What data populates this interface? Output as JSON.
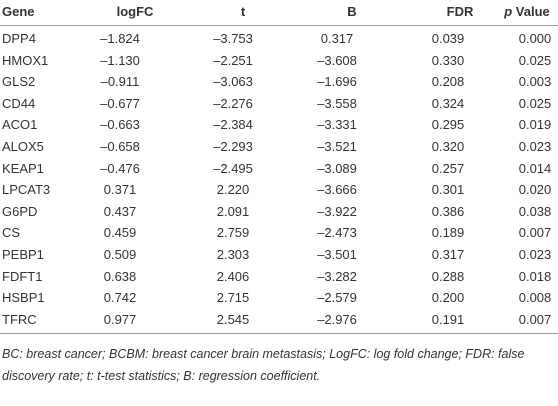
{
  "table": {
    "header": [
      "Gene",
      "logFC",
      "t",
      "B",
      "FDR",
      [
        "p",
        "Value"
      ]
    ],
    "rows": [
      [
        "DPP4",
        "–1.824",
        "–3.753",
        "0.317",
        "0.039",
        "0.000"
      ],
      [
        "HMOX1",
        "–1.130",
        "–2.251",
        "–3.608",
        "0.330",
        "0.025"
      ],
      [
        "GLS2",
        "–0.911",
        "–3.063",
        "–1.696",
        "0.208",
        "0.003"
      ],
      [
        "CD44",
        "–0.677",
        "–2.276",
        "–3.558",
        "0.324",
        "0.025"
      ],
      [
        "ACO1",
        "–0.663",
        "–2.384",
        "–3.331",
        "0.295",
        "0.019"
      ],
      [
        "ALOX5",
        "–0.658",
        "–2.293",
        "–3.521",
        "0.320",
        "0.023"
      ],
      [
        "KEAP1",
        "–0.476",
        "–2.495",
        "–3.089",
        "0.257",
        "0.014"
      ],
      [
        "LPCAT3",
        "0.371",
        "2.220",
        "–3.666",
        "0.301",
        "0.020"
      ],
      [
        "G6PD",
        "0.437",
        "2.091",
        "–3.922",
        "0.386",
        "0.038"
      ],
      [
        "CS",
        "0.459",
        "2.759",
        "–2.473",
        "0.189",
        "0.007"
      ],
      [
        "PEBP1",
        "0.509",
        "2.303",
        "–3.501",
        "0.317",
        "0.023"
      ],
      [
        "FDFT1",
        "0.638",
        "2.406",
        "–3.282",
        "0.288",
        "0.018"
      ],
      [
        "HSBP1",
        "0.742",
        "2.715",
        "–2.579",
        "0.200",
        "0.008"
      ],
      [
        "TFRC",
        "0.977",
        "2.545",
        "–2.976",
        "0.191",
        "0.007"
      ]
    ],
    "footnote": "BC: breast cancer; BCBM: breast cancer brain metastasis; LogFC: log fold change; FDR: false discovery rate; t: t-test statistics; B: regression coefficient."
  }
}
